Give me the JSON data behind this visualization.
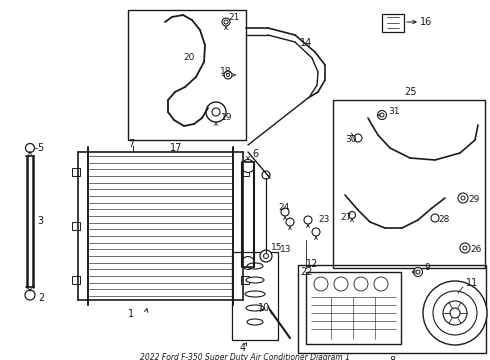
{
  "title": "2022 Ford F-350 Super Duty Air Conditioner Diagram 1",
  "bg_color": "#ffffff",
  "line_color": "#1a1a1a",
  "fig_width": 4.9,
  "fig_height": 3.6,
  "dpi": 100
}
